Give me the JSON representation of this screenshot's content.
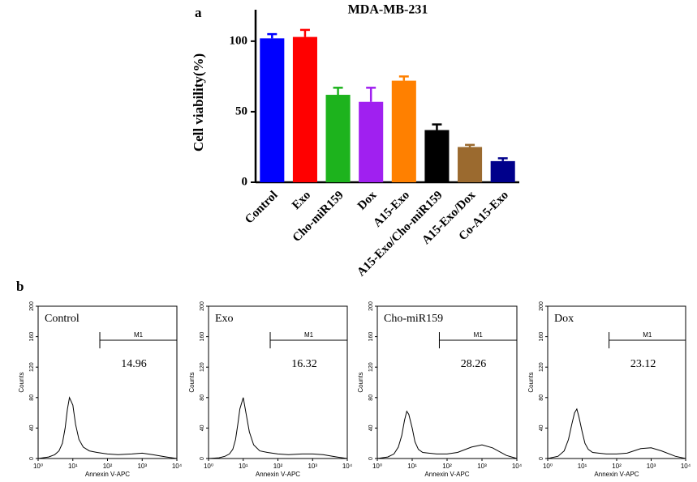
{
  "chart_data": [
    {
      "type": "bar",
      "panel_label": "a",
      "title": "MDA-MB-231",
      "y_label": "Cell viability(%)",
      "categories": [
        "Control",
        "Exo",
        "Cho-miR159",
        "Dox",
        "A15-Exo",
        "A15-Exo/Cho-miR159",
        "A15-Exo/Dox",
        "Co-A15-Exo"
      ],
      "values": [
        102,
        103,
        62,
        57,
        72,
        37,
        25,
        15
      ],
      "errors": [
        3,
        5,
        5,
        10,
        3,
        4,
        1.5,
        2
      ],
      "colors": [
        "#0000ff",
        "#ff0000",
        "#1db31d",
        "#a020f0",
        "#ff8000",
        "#000000",
        "#9b6a2f",
        "#00008b"
      ],
      "ylim": [
        0,
        120
      ],
      "yticks": [
        0,
        50,
        100
      ]
    },
    {
      "type": "line",
      "panel_label": "b",
      "title": "Control",
      "x_label": "Annexin V-APC",
      "y_label": "Counts",
      "log_x": true,
      "color": "#000000",
      "x": [
        1,
        2,
        3,
        4,
        5,
        6,
        7,
        8,
        10,
        12,
        15,
        20,
        30,
        50,
        100,
        200,
        500,
        1000,
        2000,
        5000,
        10000
      ],
      "values": [
        0,
        2,
        5,
        10,
        20,
        40,
        65,
        80,
        70,
        45,
        25,
        15,
        10,
        8,
        6,
        5,
        6,
        7,
        5,
        2,
        0
      ],
      "xlim": [
        1,
        10000
      ],
      "xticks": [
        {
          "value": 1,
          "label": "10⁰"
        },
        {
          "value": 10,
          "label": "10¹"
        },
        {
          "value": 100,
          "label": "10²"
        },
        {
          "value": 1000,
          "label": "10³"
        },
        {
          "value": 10000,
          "label": "10⁴"
        }
      ],
      "ylim": [
        0,
        200
      ],
      "yticks": [
        0,
        40,
        80,
        120,
        160,
        200
      ],
      "marker": {
        "label": "M1",
        "range": [
          60,
          10000
        ],
        "percent": 14.96
      }
    },
    {
      "type": "line",
      "title": "Exo",
      "x_label": "Annexin V-APC",
      "y_label": "Counts",
      "log_x": true,
      "color": "#000000",
      "x": [
        1,
        2,
        3,
        4,
        5,
        6,
        7,
        8,
        10,
        12,
        15,
        20,
        30,
        50,
        100,
        200,
        500,
        1000,
        2000,
        5000,
        10000
      ],
      "values": [
        0,
        1,
        3,
        6,
        12,
        25,
        45,
        65,
        80,
        60,
        35,
        18,
        10,
        8,
        6,
        5,
        6,
        6,
        5,
        2,
        0
      ],
      "xlim": [
        1,
        10000
      ],
      "xticks": [
        {
          "value": 1,
          "label": "10⁰"
        },
        {
          "value": 10,
          "label": "10¹"
        },
        {
          "value": 100,
          "label": "10²"
        },
        {
          "value": 1000,
          "label": "10³"
        },
        {
          "value": 10000,
          "label": "10⁴"
        }
      ],
      "ylim": [
        0,
        200
      ],
      "yticks": [
        0,
        40,
        80,
        120,
        160,
        200
      ],
      "marker": {
        "label": "M1",
        "range": [
          60,
          10000
        ],
        "percent": 16.32
      }
    },
    {
      "type": "line",
      "title": "Cho-miR159",
      "x_label": "Annexin V-APC",
      "y_label": "Counts",
      "log_x": true,
      "color": "#000000",
      "x": [
        1,
        2,
        3,
        4,
        5,
        6,
        7,
        8,
        10,
        12,
        15,
        20,
        30,
        50,
        100,
        200,
        500,
        1000,
        2000,
        5000,
        10000
      ],
      "values": [
        0,
        2,
        6,
        15,
        30,
        50,
        62,
        58,
        40,
        22,
        12,
        8,
        7,
        6,
        6,
        8,
        15,
        18,
        14,
        4,
        0
      ],
      "xlim": [
        1,
        10000
      ],
      "xticks": [
        {
          "value": 1,
          "label": "10⁰"
        },
        {
          "value": 10,
          "label": "10¹"
        },
        {
          "value": 100,
          "label": "10²"
        },
        {
          "value": 1000,
          "label": "10³"
        },
        {
          "value": 10000,
          "label": "10⁴"
        }
      ],
      "ylim": [
        0,
        200
      ],
      "yticks": [
        0,
        40,
        80,
        120,
        160,
        200
      ],
      "marker": {
        "label": "M1",
        "range": [
          60,
          10000
        ],
        "percent": 28.26
      }
    },
    {
      "type": "line",
      "title": "Dox",
      "x_label": "Annexin V-APC",
      "y_label": "Counts",
      "log_x": true,
      "color": "#000000",
      "x": [
        1,
        2,
        3,
        4,
        5,
        6,
        7,
        8,
        10,
        12,
        15,
        20,
        30,
        50,
        100,
        200,
        500,
        1000,
        2000,
        5000,
        10000
      ],
      "values": [
        0,
        3,
        10,
        25,
        45,
        60,
        65,
        55,
        35,
        20,
        12,
        8,
        7,
        6,
        6,
        7,
        13,
        14,
        10,
        3,
        0
      ],
      "xlim": [
        1,
        10000
      ],
      "xticks": [
        {
          "value": 1,
          "label": "10⁰"
        },
        {
          "value": 10,
          "label": "10¹"
        },
        {
          "value": 100,
          "label": "10²"
        },
        {
          "value": 1000,
          "label": "10³"
        },
        {
          "value": 10000,
          "label": "10⁴"
        }
      ],
      "ylim": [
        0,
        200
      ],
      "yticks": [
        0,
        40,
        80,
        120,
        160,
        200
      ],
      "marker": {
        "label": "M1",
        "range": [
          60,
          10000
        ],
        "percent": 23.12
      }
    }
  ]
}
